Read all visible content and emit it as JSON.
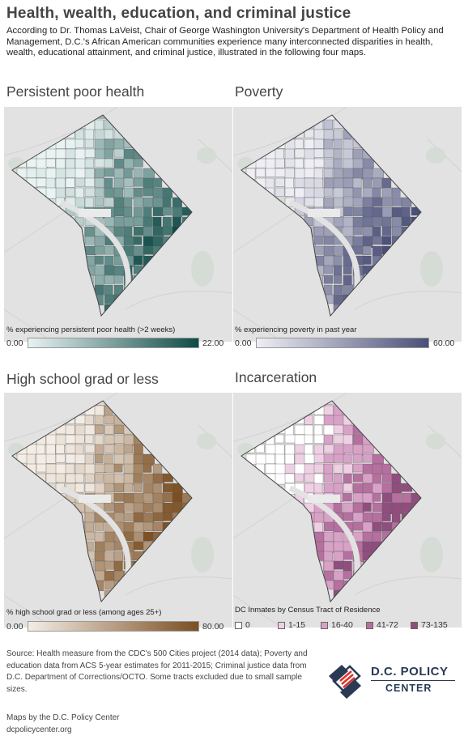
{
  "title": "Health, wealth, education, and criminal justice",
  "intro": "According to Dr. Thomas LaVeist, Chair of George Washington University's Department of Health Policy and Management, D.C.'s African American communities experience many interconnected disparities in health, wealth, educational attainment, and criminal justice, illustrated in the following four maps.",
  "maps": [
    {
      "title": "Persistent poor health",
      "legend_title": "% experiencing persistent poor health (>2 weeks)",
      "min": "0.00",
      "max": "22.00",
      "color_light": "#e8f3f2",
      "color_dark": "#0e4b47"
    },
    {
      "title": "Poverty",
      "legend_title": "% experiencing poverty in past year",
      "min": "0.00",
      "max": "60.00",
      "color_light": "#eeeef4",
      "color_dark": "#4a4f78"
    },
    {
      "title": "High school grad or less",
      "legend_title": "% high school grad or less (among ages 25+)",
      "min": "0.00",
      "max": "80.00",
      "color_light": "#f4ede5",
      "color_dark": "#7b4f22"
    },
    {
      "title": "Incarceration",
      "legend_title": "DC Inmates by Census Tract of Residence",
      "categories": [
        "0",
        "1-15",
        "16-40",
        "41-72",
        "73-135"
      ],
      "category_colors": [
        "#ffffff",
        "#efcfe4",
        "#d8a2c7",
        "#b5709f",
        "#8f4e7e"
      ]
    }
  ],
  "source": "Source: Health measure from the CDC's 500 Cities project (2014 data); Poverty and education data from ACS 5-year estimates for 2011-2015; Criminal justice data from D.C. Department of Corrections/OCTO. Some tracts excluded due to small sample sizes.",
  "credit_line1": "Maps by the D.C. Policy Center",
  "credit_line2": "dcpolicycenter.org",
  "logo": {
    "line1": "D.C. POLICY",
    "line2": "CENTER"
  }
}
